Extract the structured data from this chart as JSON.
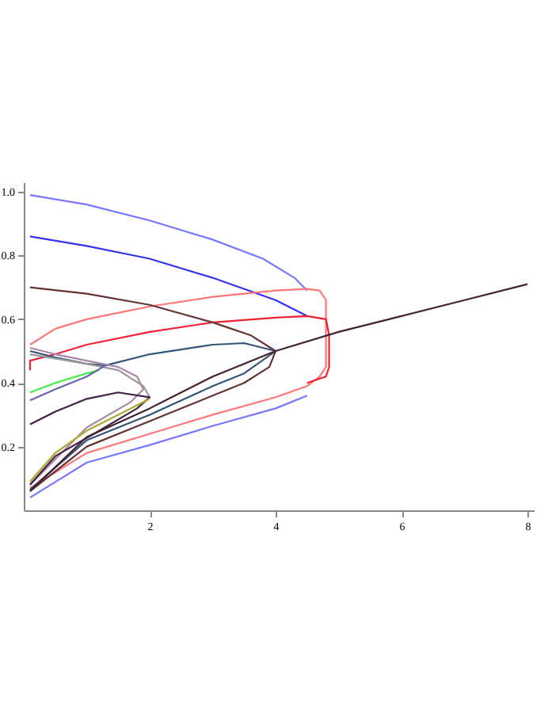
{
  "chart_data": {
    "type": "line",
    "xlim": [
      0,
      8.1
    ],
    "ylim": [
      0,
      1.03
    ],
    "xticks": [
      2,
      4,
      6,
      8
    ],
    "yticks": [
      {
        "value": 0.2,
        "label": "0.2"
      },
      {
        "value": 0.4,
        "label": "0.4"
      },
      {
        "value": 0.6,
        "label": "0.6"
      },
      {
        "value": 0.8,
        "label": "0.8"
      },
      {
        "value": 1,
        "label": "1.0"
      }
    ],
    "grid": false,
    "legend": false,
    "marker": "none",
    "line_style": "solid",
    "series": [
      {
        "color": "#7777ff",
        "x": [
          0.1,
          1,
          2,
          3,
          3.8,
          4.3,
          4.5
        ],
        "values": [
          0.99,
          0.96,
          0.91,
          0.85,
          0.79,
          0.73,
          0.69
        ]
      },
      {
        "color": "#7777ff",
        "x": [
          0.1,
          1,
          2,
          3,
          4,
          4.5
        ],
        "values": [
          0.04,
          0.15,
          0.205,
          0.265,
          0.32,
          0.36
        ]
      },
      {
        "color": "#3333ee",
        "x": [
          0.1,
          1,
          2,
          3,
          4,
          4.5
        ],
        "values": [
          0.86,
          0.83,
          0.79,
          0.73,
          0.66,
          0.61
        ]
      },
      {
        "color": "#ff7777",
        "x": [
          0.1,
          0.5,
          1,
          2,
          3,
          4,
          4.5,
          4.7,
          4.8,
          4.8,
          4.7,
          4.5,
          4,
          3,
          2,
          1,
          0.1
        ],
        "values": [
          0.52,
          0.57,
          0.6,
          0.64,
          0.67,
          0.69,
          0.695,
          0.69,
          0.66,
          0.45,
          0.42,
          0.39,
          0.355,
          0.3,
          0.24,
          0.18,
          0.07
        ]
      },
      {
        "color": "#ee2233",
        "x": [
          0.1,
          0.1,
          0.5,
          1,
          2,
          3,
          4,
          4.5,
          4.8,
          4.85,
          4.85,
          4.8,
          4.5
        ],
        "values": [
          0.44,
          0.47,
          0.49,
          0.52,
          0.56,
          0.59,
          0.605,
          0.61,
          0.6,
          0.55,
          0.45,
          0.42,
          0.4
        ]
      },
      {
        "color": "#663333",
        "x": [
          0.1,
          1,
          2,
          3,
          3.6,
          4,
          3.9,
          3.5,
          3,
          2,
          1,
          0.1
        ],
        "values": [
          0.7,
          0.68,
          0.645,
          0.59,
          0.55,
          0.5,
          0.45,
          0.4,
          0.36,
          0.28,
          0.2,
          0.06
        ]
      },
      {
        "color": "#335577",
        "x": [
          0.1,
          0.5,
          1,
          1.3,
          2,
          3,
          3.5,
          4,
          3.5,
          3,
          2,
          1,
          0.1
        ],
        "values": [
          0.5,
          0.48,
          0.46,
          0.455,
          0.49,
          0.52,
          0.525,
          0.5,
          0.43,
          0.39,
          0.3,
          0.22,
          0.065
        ]
      },
      {
        "color": "#aa88aa",
        "x": [
          0.1,
          0.5,
          1,
          1.5,
          1.8,
          1.9,
          1.7,
          1,
          0.1
        ],
        "values": [
          0.51,
          0.49,
          0.47,
          0.45,
          0.42,
          0.38,
          0.34,
          0.26,
          0.08
        ]
      },
      {
        "color": "#999999",
        "x": [
          0.1,
          1,
          1.5,
          1.9,
          2
        ],
        "values": [
          0.49,
          0.46,
          0.44,
          0.39,
          0.355
        ]
      },
      {
        "color": "#44ee44",
        "x": [
          0.1,
          0.5,
          1,
          1.2
        ],
        "values": [
          0.37,
          0.4,
          0.43,
          0.44
        ]
      },
      {
        "color": "#6666aa",
        "x": [
          0.1,
          0.5,
          1,
          1.3
        ],
        "values": [
          0.345,
          0.38,
          0.42,
          0.455
        ]
      },
      {
        "color": "#442244",
        "x": [
          0.1,
          0.5,
          1,
          1.5,
          2,
          1.8,
          1.2,
          0.5,
          0.1
        ],
        "values": [
          0.27,
          0.31,
          0.35,
          0.37,
          0.355,
          0.32,
          0.25,
          0.17,
          0.08
        ]
      },
      {
        "color": "#aaaa33",
        "x": [
          0.1,
          0.5,
          1,
          1.5,
          2
        ],
        "values": [
          0.09,
          0.18,
          0.25,
          0.3,
          0.35
        ]
      },
      {
        "color": "#442233",
        "x": [
          0.1,
          1,
          2,
          3,
          4,
          5,
          6,
          7,
          8
        ],
        "values": [
          0.06,
          0.23,
          0.32,
          0.42,
          0.5,
          0.56,
          0.61,
          0.66,
          0.71
        ]
      }
    ]
  }
}
